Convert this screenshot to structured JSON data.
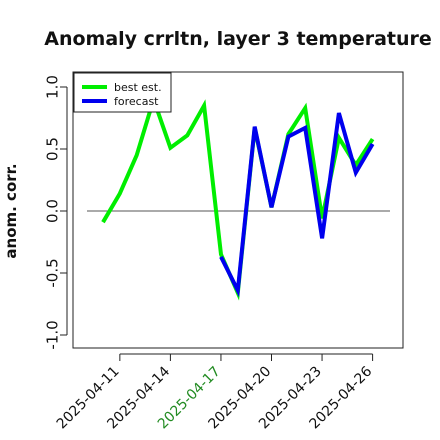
{
  "chart_data": {
    "type": "line",
    "title": "Anomaly crrltn, layer 3 temperature",
    "xlabel": "",
    "ylabel": "anom. corr.",
    "ylim": [
      -1.0,
      1.0
    ],
    "yticks": [
      "-1.0",
      "-0.5",
      "0.0",
      "0.5",
      "1.0"
    ],
    "x_dates": [
      "2025-04-10",
      "2025-04-11",
      "2025-04-12",
      "2025-04-13",
      "2025-04-14",
      "2025-04-15",
      "2025-04-16",
      "2025-04-17",
      "2025-04-18",
      "2025-04-19",
      "2025-04-20",
      "2025-04-21",
      "2025-04-22",
      "2025-04-23",
      "2025-04-24",
      "2025-04-25",
      "2025-04-26"
    ],
    "xticks": [
      {
        "label": "2025-04-11",
        "color": "#111111"
      },
      {
        "label": "2025-04-14",
        "color": "#111111"
      },
      {
        "label": "2025-04-17",
        "color": "#228b22"
      },
      {
        "label": "2025-04-20",
        "color": "#111111"
      },
      {
        "label": "2025-04-23",
        "color": "#111111"
      },
      {
        "label": "2025-04-26",
        "color": "#111111"
      }
    ],
    "reference_line": 0.0,
    "legend_position": "top-left",
    "series": [
      {
        "name": "best est.",
        "color": "#00ee00",
        "x": [
          "2025-04-10",
          "2025-04-11",
          "2025-04-12",
          "2025-04-13",
          "2025-04-14",
          "2025-04-15",
          "2025-04-16",
          "2025-04-17",
          "2025-04-18",
          "2025-04-19",
          "2025-04-20",
          "2025-04-21",
          "2025-04-22",
          "2025-04-23",
          "2025-04-24",
          "2025-04-25",
          "2025-04-26"
        ],
        "values": [
          -0.09,
          0.14,
          0.45,
          0.9,
          0.51,
          0.61,
          0.85,
          -0.35,
          -0.66,
          0.67,
          0.03,
          0.62,
          0.83,
          -0.06,
          0.59,
          0.37,
          0.58
        ]
      },
      {
        "name": "forecast",
        "color": "#0000ee",
        "x": [
          "2025-04-17",
          "2025-04-18",
          "2025-04-19",
          "2025-04-20",
          "2025-04-21",
          "2025-04-22",
          "2025-04-23",
          "2025-04-24",
          "2025-04-25",
          "2025-04-26"
        ],
        "values": [
          -0.37,
          -0.64,
          0.68,
          0.03,
          0.6,
          0.67,
          -0.22,
          0.79,
          0.31,
          0.54
        ]
      }
    ]
  }
}
